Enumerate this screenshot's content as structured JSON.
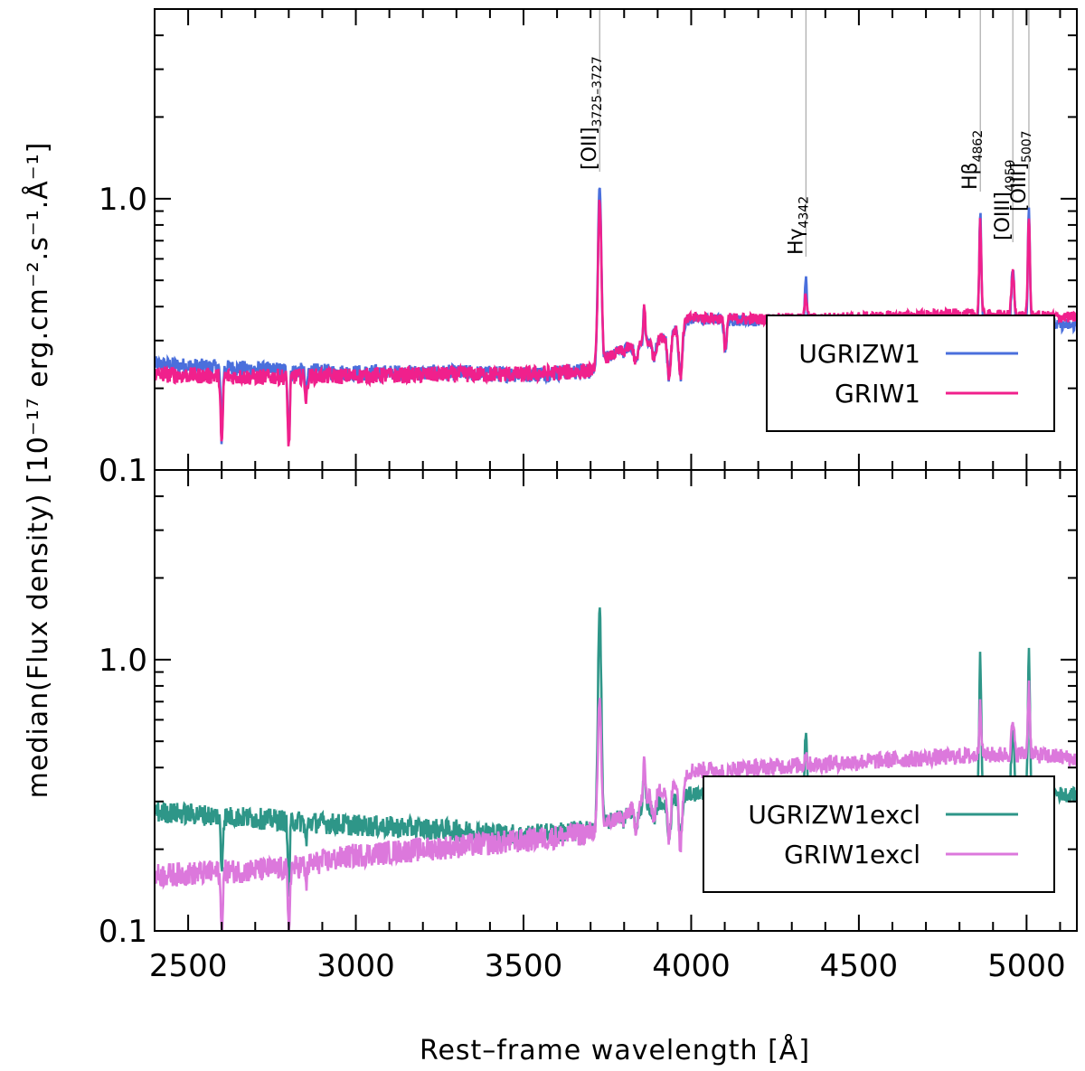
{
  "chart_data": [
    {
      "type": "line",
      "panel": "top",
      "title": "",
      "xlabel": "",
      "ylabel": "median(Flux density) [10⁻¹⁷ erg.cm⁻².s⁻¹.Å⁻¹]",
      "xlim": [
        2400,
        5150
      ],
      "ylim": [
        0.1,
        5
      ],
      "yscale": "log",
      "y_tick_labels": [
        "1.0",
        "0.1"
      ],
      "y_tick_values": [
        1.0,
        0.1
      ],
      "legend_position": "lower-right",
      "legend": [
        {
          "label": "UGRIZW1",
          "color": "#4a6fdc"
        },
        {
          "label": "GRIW1",
          "color": "#f0208c"
        }
      ],
      "series": [
        {
          "name": "UGRIZW1",
          "color": "#4a6fdc",
          "continuum": [
            [
              2400,
              0.245
            ],
            [
              2700,
              0.235
            ],
            [
              3000,
              0.228
            ],
            [
              3300,
              0.228
            ],
            [
              3500,
              0.225
            ],
            [
              3700,
              0.232
            ],
            [
              3727,
              0.25
            ],
            [
              3800,
              0.28
            ],
            [
              3900,
              0.3
            ],
            [
              4000,
              0.36
            ],
            [
              4200,
              0.355
            ],
            [
              4500,
              0.345
            ],
            [
              4800,
              0.35
            ],
            [
              5000,
              0.345
            ],
            [
              5150,
              0.34
            ]
          ],
          "noise": 0.06,
          "features": [
            [
              3727,
              1.15,
              5
            ],
            [
              4342,
              0.5,
              3
            ],
            [
              4862,
              0.9,
              3
            ],
            [
              4959,
              0.55,
              4
            ],
            [
              5007,
              0.94,
              3
            ],
            [
              2600,
              0.13,
              3
            ],
            [
              2800,
              0.13,
              3
            ],
            [
              2852,
              0.19,
              3
            ],
            [
              3934,
              0.22,
              5
            ],
            [
              3968,
              0.22,
              5
            ],
            [
              4102,
              0.28,
              4
            ],
            [
              3835,
              0.25,
              5
            ],
            [
              3889,
              0.26,
              5
            ],
            [
              3798,
              0.27,
              4
            ],
            [
              3750,
              0.26,
              4
            ],
            [
              3860,
              0.4,
              3
            ]
          ]
        },
        {
          "name": "GRIW1",
          "color": "#f0208c",
          "continuum": [
            [
              2400,
              0.225
            ],
            [
              2700,
              0.22
            ],
            [
              3000,
              0.222
            ],
            [
              3300,
              0.225
            ],
            [
              3500,
              0.225
            ],
            [
              3700,
              0.232
            ],
            [
              3727,
              0.25
            ],
            [
              3800,
              0.28
            ],
            [
              3900,
              0.3
            ],
            [
              4000,
              0.365
            ],
            [
              4200,
              0.36
            ],
            [
              4500,
              0.365
            ],
            [
              4800,
              0.375
            ],
            [
              5000,
              0.37
            ],
            [
              5150,
              0.365
            ]
          ],
          "noise": 0.06,
          "features": [
            [
              3727,
              1.0,
              5
            ],
            [
              4342,
              0.45,
              3
            ],
            [
              4862,
              0.83,
              3
            ],
            [
              4959,
              0.53,
              4
            ],
            [
              5007,
              0.86,
              3
            ],
            [
              2600,
              0.12,
              3
            ],
            [
              2800,
              0.12,
              3
            ],
            [
              2852,
              0.18,
              3
            ],
            [
              3934,
              0.22,
              5
            ],
            [
              3968,
              0.22,
              5
            ],
            [
              4102,
              0.28,
              4
            ],
            [
              3835,
              0.25,
              5
            ],
            [
              3889,
              0.26,
              5
            ],
            [
              3798,
              0.27,
              4
            ],
            [
              3750,
              0.26,
              4
            ],
            [
              3860,
              0.4,
              3
            ]
          ]
        }
      ],
      "annotations": [
        {
          "main": "[OII]",
          "sub": "3725–3727",
          "x": 3727
        },
        {
          "main": "Hγ",
          "sub": "4342",
          "x": 4342
        },
        {
          "main": "Hβ",
          "sub": "4862",
          "x": 4862
        },
        {
          "main": "[OIII]",
          "sub": "4959",
          "x": 4959
        },
        {
          "main": "[OIII]",
          "sub": "5007",
          "x": 5007
        }
      ]
    },
    {
      "type": "line",
      "panel": "bottom",
      "title": "",
      "xlabel": "Rest–frame wavelength [Å]",
      "ylabel": "",
      "xlim": [
        2400,
        5150
      ],
      "ylim": [
        0.1,
        5
      ],
      "yscale": "log",
      "x_tick_labels": [
        "2500",
        "3000",
        "3500",
        "4000",
        "4500",
        "5000"
      ],
      "x_tick_values": [
        2500,
        3000,
        3500,
        4000,
        4500,
        5000
      ],
      "y_tick_labels": [
        "1.0",
        "0.1"
      ],
      "y_tick_values": [
        1.0,
        0.1
      ],
      "legend_position": "lower-right",
      "legend": [
        {
          "label": "UGRIZW1excl",
          "color": "#2e9688"
        },
        {
          "label": "GRIW1excl",
          "color": "#dc78dc"
        }
      ],
      "series": [
        {
          "name": "UGRIZW1excl",
          "color": "#2e9688",
          "continuum": [
            [
              2400,
              0.275
            ],
            [
              2700,
              0.26
            ],
            [
              3000,
              0.245
            ],
            [
              3300,
              0.235
            ],
            [
              3500,
              0.225
            ],
            [
              3700,
              0.235
            ],
            [
              3800,
              0.27
            ],
            [
              4000,
              0.32
            ],
            [
              4200,
              0.32
            ],
            [
              4500,
              0.32
            ],
            [
              4800,
              0.33
            ],
            [
              5000,
              0.33
            ],
            [
              5150,
              0.315
            ]
          ],
          "noise": 0.08,
          "features": [
            [
              3727,
              1.55,
              5
            ],
            [
              4342,
              0.56,
              3
            ],
            [
              4862,
              1.02,
              3
            ],
            [
              4959,
              0.55,
              4
            ],
            [
              5007,
              1.04,
              3
            ],
            [
              2600,
              0.17,
              3
            ],
            [
              2800,
              0.14,
              3
            ],
            [
              2852,
              0.21,
              3
            ],
            [
              3934,
              0.22,
              5
            ],
            [
              3968,
              0.22,
              5
            ],
            [
              4102,
              0.27,
              4
            ],
            [
              3835,
              0.24,
              5
            ],
            [
              3889,
              0.26,
              5
            ],
            [
              3798,
              0.25,
              4
            ],
            [
              3750,
              0.25,
              4
            ],
            [
              3860,
              0.4,
              3
            ]
          ]
        },
        {
          "name": "GRIW1excl",
          "color": "#dc78dc",
          "continuum": [
            [
              2400,
              0.16
            ],
            [
              2600,
              0.165
            ],
            [
              2800,
              0.17
            ],
            [
              3000,
              0.19
            ],
            [
              3300,
              0.205
            ],
            [
              3500,
              0.215
            ],
            [
              3700,
              0.23
            ],
            [
              3800,
              0.27
            ],
            [
              4000,
              0.39
            ],
            [
              4200,
              0.4
            ],
            [
              4500,
              0.42
            ],
            [
              4800,
              0.44
            ],
            [
              5000,
              0.45
            ],
            [
              5150,
              0.43
            ]
          ],
          "noise": 0.09,
          "features": [
            [
              3727,
              0.7,
              5
            ],
            [
              4342,
              0.45,
              3
            ],
            [
              4862,
              0.7,
              3
            ],
            [
              4959,
              0.58,
              4
            ],
            [
              5007,
              0.8,
              3
            ],
            [
              2600,
              0.1,
              3
            ],
            [
              2800,
              0.1,
              3
            ],
            [
              2852,
              0.15,
              3
            ],
            [
              3934,
              0.21,
              5
            ],
            [
              3968,
              0.2,
              5
            ],
            [
              4102,
              0.3,
              4
            ],
            [
              3835,
              0.24,
              5
            ],
            [
              3889,
              0.26,
              5
            ],
            [
              3798,
              0.25,
              4
            ],
            [
              3750,
              0.25,
              4
            ],
            [
              3860,
              0.42,
              3
            ]
          ]
        }
      ]
    }
  ]
}
